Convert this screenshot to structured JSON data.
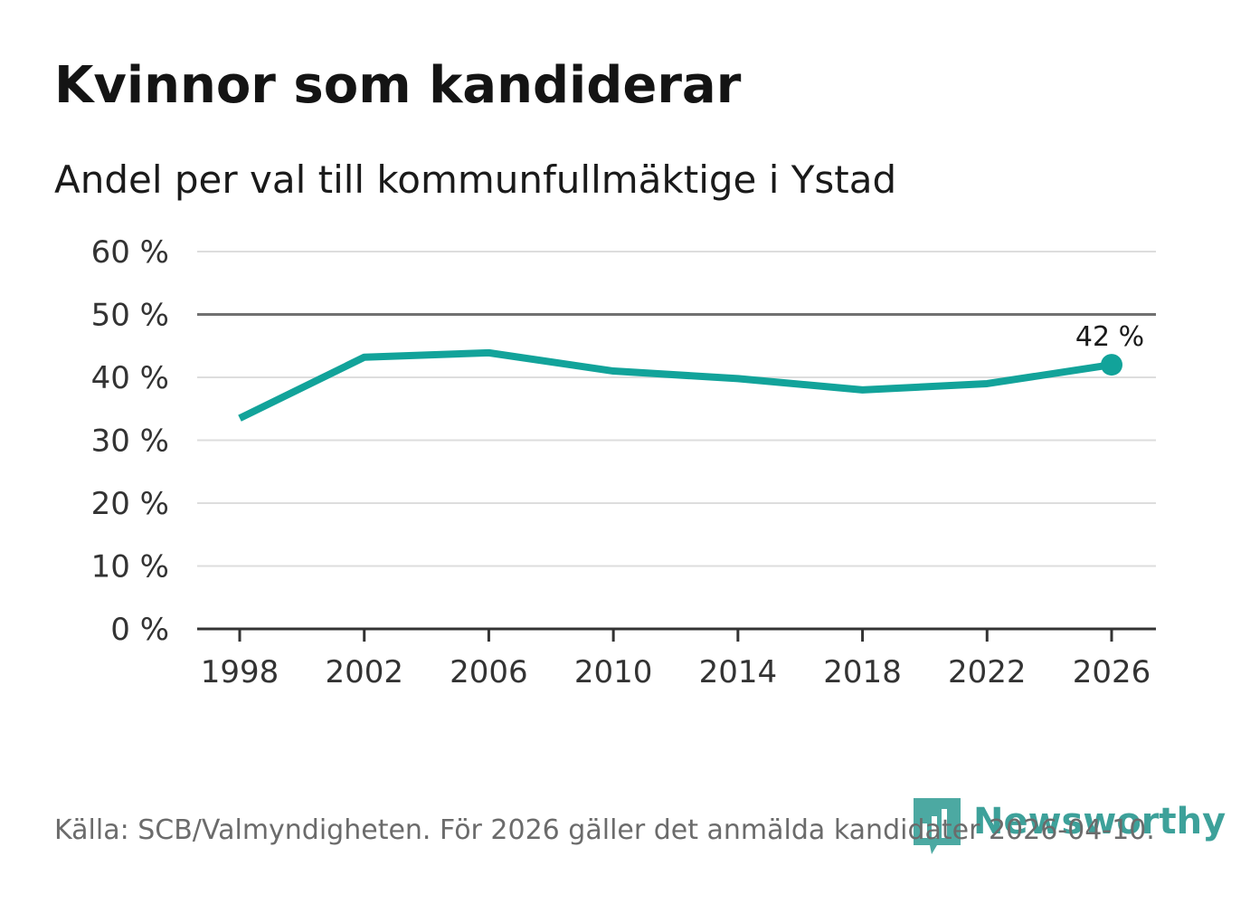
{
  "header": {
    "title": "Kvinnor som kandiderar",
    "subtitle": "Andel per val till kommunfullmäktige i Ystad"
  },
  "footer": {
    "source": "Källa: SCB/Valmyndigheten. För 2026 gäller det anmälda kandidater 2026-04-10.",
    "brand": "Newsworthy"
  },
  "colors": {
    "line": "#12a39a",
    "grid": "#dddddd",
    "reference": "#707070",
    "axis": "#333333",
    "brand": "#2d9a92"
  },
  "chart_data": {
    "type": "line",
    "title": "Kvinnor som kandiderar",
    "subtitle": "Andel per val till kommunfullmäktige i Ystad",
    "x": [
      1998,
      2002,
      2006,
      2010,
      2014,
      2018,
      2022,
      2026
    ],
    "series": [
      {
        "values": [
          33.5,
          43.2,
          43.9,
          41.0,
          39.8,
          38.0,
          39.0,
          42.0
        ]
      }
    ],
    "x_tick_labels": [
      "1998",
      "2002",
      "2006",
      "2010",
      "2014",
      "2018",
      "2022",
      "2026"
    ],
    "y_tick_values": [
      0,
      10,
      20,
      30,
      40,
      50,
      60
    ],
    "y_tick_labels": [
      "0 %",
      "10 %",
      "20 %",
      "30 %",
      "40 %",
      "50 %",
      "60 %"
    ],
    "ylim": [
      0,
      60
    ],
    "xlim": [
      1998,
      2026
    ],
    "reference_line": 50,
    "end_label": {
      "x": 2026,
      "value": 42,
      "text": "42 %"
    },
    "grid": true,
    "legend": "none"
  }
}
